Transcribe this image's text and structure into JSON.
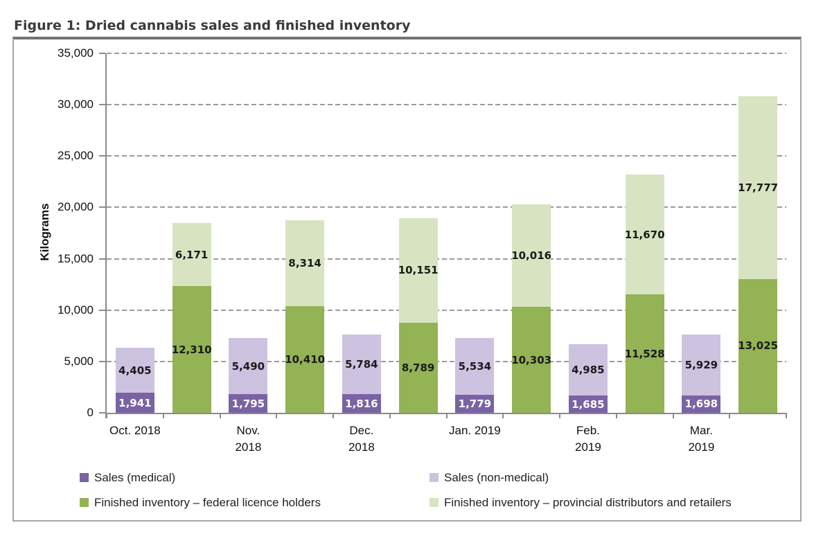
{
  "page": {
    "title": "Figure 1: Dried cannabis sales and finished inventory"
  },
  "chart_data": {
    "type": "bar",
    "stacked": true,
    "orientation": "vertical",
    "title": "Figure 1: Dried cannabis sales and finished inventory",
    "xlabel": "",
    "ylabel": "Kilograms",
    "ylim": [
      0,
      35000
    ],
    "yticks": [
      0,
      5000,
      10000,
      15000,
      20000,
      25000,
      30000,
      35000
    ],
    "ytick_labels": [
      "0",
      "5,000",
      "10,000",
      "15,000",
      "20,000",
      "25,000",
      "30,000",
      "35,000"
    ],
    "grid": {
      "horizontal": true,
      "style": "dashed",
      "color": "#9b9b9b"
    },
    "legend_position": "bottom",
    "categories": [
      "Oct. 2018",
      "Nov. 2018",
      "Dec. 2018",
      "Jan. 2019",
      "Feb. 2019",
      "Mar. 2019"
    ],
    "category_label_lines": [
      [
        "Oct. 2018"
      ],
      [
        "Nov.",
        "2018"
      ],
      [
        "Dec.",
        "2018"
      ],
      [
        "Jan. 2019"
      ],
      [
        "Feb.",
        "2019"
      ],
      [
        "Mar.",
        "2019"
      ]
    ],
    "bar_groups_per_category": [
      "sales",
      "inventory"
    ],
    "series": [
      {
        "name": "Sales (medical)",
        "slug": "sales-medical",
        "group": "sales",
        "color": "#7a63a4",
        "label_color": "#ffffff",
        "values": [
          1941,
          1795,
          1816,
          1779,
          1685,
          1698
        ],
        "labels": [
          "1,941",
          "1,795",
          "1,816",
          "1,779",
          "1,685",
          "1,698"
        ]
      },
      {
        "name": "Sales (non-medical)",
        "slug": "sales-non-medical",
        "group": "sales",
        "color": "#cdc3e0",
        "label_color": "#1a1a1a",
        "values": [
          4405,
          5490,
          5784,
          5534,
          4985,
          5929
        ],
        "labels": [
          "4,405",
          "5,490",
          "5,784",
          "5,534",
          "4,985",
          "5,929"
        ]
      },
      {
        "name": "Finished inventory – federal licence holders",
        "slug": "inventory-federal",
        "group": "inventory",
        "color": "#93b354",
        "label_color": "#1a1a1a",
        "values": [
          12310,
          10410,
          8789,
          10303,
          11528,
          13025
        ],
        "labels": [
          "12,310",
          "10,410",
          "8,789",
          "10,303",
          "11,528",
          "13,025"
        ]
      },
      {
        "name": "Finished inventory – provincial distributors and retailers",
        "slug": "inventory-provincial",
        "group": "inventory",
        "color": "#d8e4c1",
        "label_color": "#1a1a1a",
        "values": [
          6171,
          8314,
          10151,
          10016,
          11670,
          17777
        ],
        "labels": [
          "6,171",
          "8,314",
          "10,151",
          "10,016",
          "11,670",
          "17,777"
        ]
      }
    ],
    "legend_entries": [
      "Sales (medical)",
      "Sales (non-medical)",
      "Finished inventory – federal licence holders",
      "Finished inventory – provincial distributors and retailers"
    ]
  }
}
